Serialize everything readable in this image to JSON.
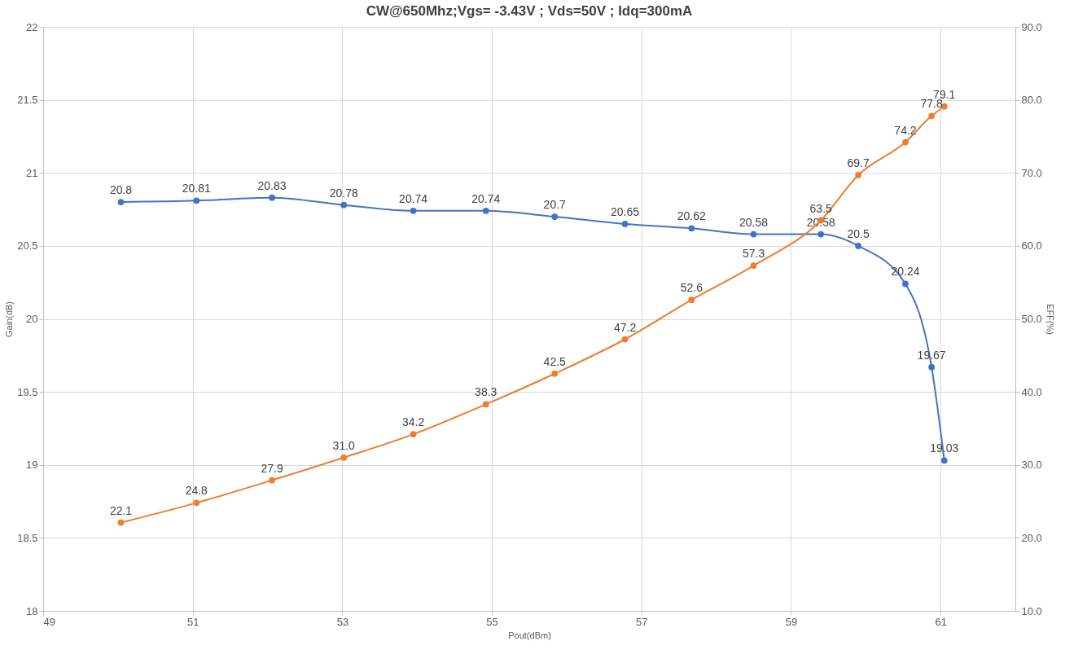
{
  "chart_data": {
    "type": "line",
    "title": "CW@650Mhz;Vgs= -3.43V ;  Vds=50V ;   Idq=300mA",
    "xlabel": "Pout(dBm)",
    "ylabel": "Gain(dB)",
    "y2label": "EFF(%)",
    "series": [
      {
        "color": "#4472c4",
        "axis": "y",
        "x": [
          50.04,
          51.05,
          52.06,
          53.02,
          53.95,
          54.92,
          55.84,
          56.78,
          57.67,
          58.5,
          59.4,
          59.9,
          60.53,
          60.88,
          61.05
        ],
        "values": [
          20.8,
          20.81,
          20.83,
          20.78,
          20.74,
          20.74,
          20.7,
          20.65,
          20.62,
          20.58,
          20.58,
          20.5,
          20.24,
          19.67,
          19.03
        ],
        "value_labels": [
          "20.8",
          "20.81",
          "20.83",
          "20.78",
          "20.74",
          "20.74",
          "20.7",
          "20.65",
          "20.62",
          "20.58",
          "20.58",
          "20.5",
          "20.24",
          "19.67",
          "19.03"
        ]
      },
      {
        "color": "#ed7d31",
        "axis": "y2",
        "x": [
          50.04,
          51.05,
          52.06,
          53.02,
          53.95,
          54.92,
          55.84,
          56.78,
          57.67,
          58.5,
          59.4,
          59.9,
          60.53,
          60.88,
          61.05
        ],
        "values": [
          22.1,
          24.8,
          27.9,
          31.0,
          34.2,
          38.3,
          42.5,
          47.2,
          52.6,
          57.3,
          63.5,
          69.7,
          74.2,
          77.8,
          79.1
        ],
        "value_labels": [
          "22.1",
          "24.8",
          "27.9",
          "31.0",
          "34.2",
          "38.3",
          "42.5",
          "47.2",
          "52.6",
          "57.3",
          "63.5",
          "69.7",
          "74.2",
          "77.8",
          "79.1"
        ]
      }
    ],
    "xlim": [
      49,
      62
    ],
    "xticks": [
      49,
      51,
      53,
      55,
      57,
      59,
      61
    ],
    "ylim": [
      18,
      22
    ],
    "yticks": [
      18,
      18.5,
      19,
      19.5,
      20,
      20.5,
      21,
      21.5,
      22
    ],
    "y2lim": [
      10,
      90
    ],
    "y2ticks": [
      {
        "value": 10,
        "label": "10.0"
      },
      {
        "value": 20,
        "label": "20.0"
      },
      {
        "value": 30,
        "label": "30.0"
      },
      {
        "value": 40,
        "label": "40.0"
      },
      {
        "value": 50,
        "label": "50.0"
      },
      {
        "value": 60,
        "label": "60.0"
      },
      {
        "value": 70,
        "label": "70.0"
      },
      {
        "value": 80,
        "label": "80.0"
      },
      {
        "value": 90,
        "label": "90.0"
      }
    ],
    "grid": true,
    "marker": "circle",
    "line_style": "solid"
  }
}
